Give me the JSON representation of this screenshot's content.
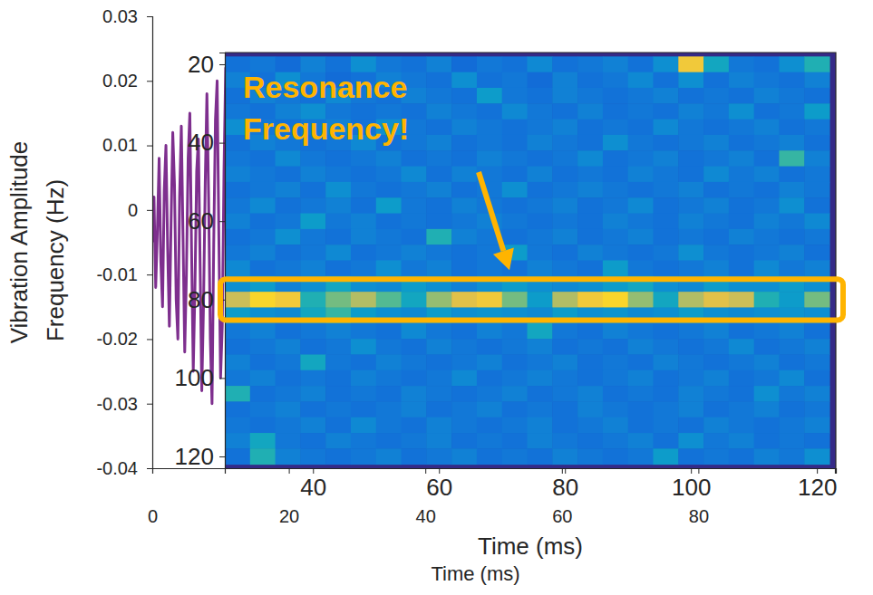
{
  "chart_data": [
    {
      "type": "line",
      "x_label": "Time (ms)",
      "y_label": "Vibration Amplitude",
      "xlim": [
        0,
        100
      ],
      "xticks": [
        0,
        20,
        40,
        60,
        80
      ],
      "ylim": [
        -0.04,
        0.03
      ],
      "yticks": [
        0.03,
        0.02,
        0.01,
        0,
        -0.01,
        -0.02,
        -0.03,
        -0.04
      ],
      "x": [
        0,
        0.25,
        0.5,
        0.75,
        1,
        1.25,
        1.5,
        1.75,
        2,
        2.25,
        2.5,
        2.75,
        3,
        3.25,
        3.5,
        3.75,
        4,
        4.25,
        4.5,
        4.75,
        5,
        5.25,
        5.5,
        5.75,
        6,
        6.25,
        6.5,
        6.75,
        7,
        7.25,
        7.5,
        7.75,
        8,
        8.25,
        8.5,
        8.75,
        9,
        9.25,
        9.5,
        9.75,
        10,
        10.25,
        10.5,
        10.75,
        11
      ],
      "series": [
        {
          "color": "#7e2f8e",
          "values": [
            -0.005,
            0.002,
            -0.012,
            -0.003,
            0.008,
            -0.008,
            -0.015,
            0.003,
            0.01,
            -0.006,
            -0.018,
            -0.002,
            0.012,
            0.004,
            -0.014,
            -0.02,
            0.002,
            0.013,
            -0.004,
            -0.022,
            -0.01,
            0.008,
            0.015,
            -0.006,
            -0.025,
            -0.012,
            0.006,
            0.011,
            -0.008,
            -0.028,
            -0.015,
            0.004,
            0.018,
            0.002,
            -0.02,
            -0.03,
            -0.005,
            0.014,
            0.02,
            -0.004,
            -0.026,
            -0.018,
            0.006,
            0.022,
            0.01
          ]
        }
      ]
    },
    {
      "type": "heatmap",
      "x_label": "Time (ms)",
      "y_label": "Frequency (Hz)",
      "xlim": [
        26,
        123
      ],
      "xticks": [
        40,
        60,
        80,
        100,
        120
      ],
      "ylim": [
        17,
        123
      ],
      "yticks": [
        20,
        40,
        60,
        80,
        100,
        120
      ],
      "time_bins": [
        26,
        30,
        34,
        38,
        42,
        46,
        50,
        54,
        58,
        62,
        66,
        70,
        74,
        78,
        82,
        86,
        90,
        94,
        98,
        102,
        106,
        110,
        114,
        118,
        122
      ],
      "freq_bins": [
        18,
        22,
        26,
        30,
        34,
        38,
        42,
        46,
        50,
        54,
        58,
        62,
        66,
        70,
        74,
        78,
        82,
        86,
        90,
        94,
        98,
        102,
        106,
        110,
        114,
        118,
        122
      ],
      "zlim": [
        0,
        1
      ],
      "cells": [
        [
          0.2,
          0.22,
          0.18,
          0.25,
          0.2,
          0.3,
          0.22,
          0.2,
          0.25,
          0.18,
          0.22,
          0.2,
          0.28,
          0.2,
          0.22,
          0.25,
          0.2,
          0.3,
          0.85,
          0.4,
          0.22,
          0.2,
          0.3,
          0.45
        ],
        [
          0.25,
          0.2,
          0.3,
          0.22,
          0.18,
          0.2,
          0.25,
          0.22,
          0.2,
          0.3,
          0.2,
          0.22,
          0.18,
          0.25,
          0.2,
          0.22,
          0.28,
          0.2,
          0.3,
          0.2,
          0.25,
          0.22,
          0.2,
          0.25
        ],
        [
          0.2,
          0.25,
          0.22,
          0.2,
          0.28,
          0.22,
          0.2,
          0.25,
          0.22,
          0.2,
          0.35,
          0.22,
          0.2,
          0.25,
          0.22,
          0.2,
          0.22,
          0.25,
          0.2,
          0.22,
          0.2,
          0.25,
          0.22,
          0.2
        ],
        [
          0.22,
          0.2,
          0.25,
          0.3,
          0.22,
          0.2,
          0.22,
          0.2,
          0.25,
          0.22,
          0.2,
          0.28,
          0.22,
          0.2,
          0.25,
          0.2,
          0.22,
          0.2,
          0.25,
          0.22,
          0.3,
          0.2,
          0.22,
          0.35
        ],
        [
          0.3,
          0.22,
          0.2,
          0.22,
          0.25,
          0.2,
          0.3,
          0.22,
          0.2,
          0.25,
          0.22,
          0.2,
          0.22,
          0.25,
          0.2,
          0.22,
          0.2,
          0.28,
          0.22,
          0.2,
          0.22,
          0.25,
          0.2,
          0.22
        ],
        [
          0.2,
          0.25,
          0.22,
          0.2,
          0.22,
          0.28,
          0.2,
          0.22,
          0.25,
          0.2,
          0.22,
          0.2,
          0.25,
          0.22,
          0.2,
          0.3,
          0.22,
          0.2,
          0.22,
          0.25,
          0.2,
          0.22,
          0.25,
          0.2
        ],
        [
          0.22,
          0.2,
          0.28,
          0.22,
          0.2,
          0.22,
          0.25,
          0.2,
          0.22,
          0.2,
          0.25,
          0.22,
          0.2,
          0.22,
          0.28,
          0.2,
          0.22,
          0.25,
          0.2,
          0.22,
          0.25,
          0.2,
          0.5,
          0.25
        ],
        [
          0.25,
          0.22,
          0.2,
          0.25,
          0.22,
          0.2,
          0.22,
          0.28,
          0.2,
          0.25,
          0.22,
          0.2,
          0.25,
          0.2,
          0.22,
          0.2,
          0.25,
          0.22,
          0.2,
          0.28,
          0.22,
          0.25,
          0.2,
          0.22
        ],
        [
          0.2,
          0.22,
          0.25,
          0.2,
          0.3,
          0.22,
          0.2,
          0.22,
          0.25,
          0.2,
          0.22,
          0.3,
          0.2,
          0.22,
          0.25,
          0.22,
          0.2,
          0.22,
          0.25,
          0.2,
          0.22,
          0.2,
          0.25,
          0.22
        ],
        [
          0.22,
          0.28,
          0.2,
          0.22,
          0.25,
          0.2,
          0.35,
          0.22,
          0.2,
          0.25,
          0.22,
          0.2,
          0.22,
          0.25,
          0.2,
          0.22,
          0.28,
          0.2,
          0.22,
          0.25,
          0.2,
          0.22,
          0.3,
          0.2
        ],
        [
          0.25,
          0.2,
          0.22,
          0.35,
          0.22,
          0.25,
          0.2,
          0.22,
          0.2,
          0.22,
          0.25,
          0.22,
          0.2,
          0.22,
          0.2,
          0.25,
          0.22,
          0.2,
          0.25,
          0.22,
          0.2,
          0.25,
          0.22,
          0.28
        ],
        [
          0.2,
          0.22,
          0.3,
          0.22,
          0.2,
          0.25,
          0.22,
          0.2,
          0.45,
          0.25,
          0.22,
          0.2,
          0.22,
          0.25,
          0.2,
          0.22,
          0.25,
          0.2,
          0.22,
          0.2,
          0.25,
          0.22,
          0.2,
          0.22
        ],
        [
          0.22,
          0.25,
          0.2,
          0.22,
          0.28,
          0.2,
          0.22,
          0.25,
          0.22,
          0.2,
          0.22,
          0.35,
          0.22,
          0.2,
          0.25,
          0.22,
          0.2,
          0.22,
          0.3,
          0.22,
          0.2,
          0.22,
          0.25,
          0.2
        ],
        [
          0.28,
          0.2,
          0.22,
          0.25,
          0.2,
          0.22,
          0.3,
          0.22,
          0.25,
          0.2,
          0.22,
          0.2,
          0.25,
          0.22,
          0.2,
          0.35,
          0.22,
          0.2,
          0.22,
          0.25,
          0.2,
          0.28,
          0.22,
          0.25
        ],
        [
          0.3,
          0.35,
          0.25,
          0.3,
          0.4,
          0.3,
          0.28,
          0.35,
          0.3,
          0.25,
          0.3,
          0.35,
          0.3,
          0.28,
          0.3,
          0.35,
          0.4,
          0.3,
          0.28,
          0.35,
          0.3,
          0.3,
          0.35,
          0.3
        ],
        [
          0.75,
          0.9,
          0.85,
          0.45,
          0.6,
          0.7,
          0.55,
          0.4,
          0.65,
          0.8,
          0.85,
          0.6,
          0.35,
          0.7,
          0.85,
          0.9,
          0.65,
          0.4,
          0.7,
          0.8,
          0.75,
          0.45,
          0.35,
          0.6
        ],
        [
          0.35,
          0.3,
          0.28,
          0.4,
          0.5,
          0.35,
          0.3,
          0.28,
          0.35,
          0.3,
          0.32,
          0.3,
          0.28,
          0.35,
          0.3,
          0.32,
          0.28,
          0.3,
          0.35,
          0.3,
          0.28,
          0.3,
          0.32,
          0.3
        ],
        [
          0.22,
          0.25,
          0.2,
          0.22,
          0.25,
          0.22,
          0.2,
          0.28,
          0.22,
          0.2,
          0.25,
          0.22,
          0.4,
          0.22,
          0.2,
          0.25,
          0.22,
          0.2,
          0.22,
          0.25,
          0.2,
          0.22,
          0.25,
          0.2
        ],
        [
          0.2,
          0.22,
          0.25,
          0.2,
          0.22,
          0.3,
          0.22,
          0.2,
          0.25,
          0.22,
          0.2,
          0.22,
          0.25,
          0.2,
          0.22,
          0.2,
          0.25,
          0.22,
          0.2,
          0.22,
          0.28,
          0.2,
          0.22,
          0.25
        ],
        [
          0.25,
          0.2,
          0.22,
          0.4,
          0.22,
          0.2,
          0.25,
          0.22,
          0.2,
          0.22,
          0.25,
          0.2,
          0.22,
          0.25,
          0.2,
          0.22,
          0.2,
          0.25,
          0.22,
          0.2,
          0.22,
          0.25,
          0.2,
          0.22
        ],
        [
          0.22,
          0.25,
          0.2,
          0.22,
          0.2,
          0.25,
          0.22,
          0.2,
          0.22,
          0.28,
          0.2,
          0.22,
          0.25,
          0.22,
          0.2,
          0.22,
          0.25,
          0.2,
          0.22,
          0.25,
          0.2,
          0.22,
          0.28,
          0.2
        ],
        [
          0.45,
          0.2,
          0.22,
          0.25,
          0.2,
          0.22,
          0.2,
          0.25,
          0.22,
          0.2,
          0.22,
          0.25,
          0.2,
          0.22,
          0.25,
          0.2,
          0.22,
          0.2,
          0.25,
          0.22,
          0.2,
          0.3,
          0.22,
          0.25
        ],
        [
          0.2,
          0.22,
          0.25,
          0.2,
          0.22,
          0.2,
          0.22,
          0.25,
          0.2,
          0.22,
          0.25,
          0.2,
          0.22,
          0.2,
          0.25,
          0.22,
          0.2,
          0.22,
          0.25,
          0.2,
          0.22,
          0.25,
          0.2,
          0.22
        ],
        [
          0.22,
          0.2,
          0.22,
          0.25,
          0.2,
          0.28,
          0.22,
          0.2,
          0.25,
          0.22,
          0.2,
          0.22,
          0.25,
          0.2,
          0.22,
          0.25,
          0.2,
          0.22,
          0.2,
          0.25,
          0.22,
          0.2,
          0.22,
          0.25
        ],
        [
          0.25,
          0.4,
          0.22,
          0.2,
          0.25,
          0.22,
          0.2,
          0.22,
          0.25,
          0.2,
          0.22,
          0.2,
          0.25,
          0.22,
          0.2,
          0.22,
          0.25,
          0.2,
          0.3,
          0.22,
          0.25,
          0.2,
          0.22,
          0.2
        ],
        [
          0.2,
          0.45,
          0.25,
          0.22,
          0.2,
          0.22,
          0.25,
          0.2,
          0.22,
          0.25,
          0.2,
          0.22,
          0.2,
          0.25,
          0.22,
          0.2,
          0.22,
          0.35,
          0.2,
          0.22,
          0.2,
          0.25,
          0.22,
          0.3
        ]
      ],
      "annotations": [
        {
          "text": "Resonance Frequency!",
          "color": "#ffb400"
        }
      ]
    }
  ]
}
